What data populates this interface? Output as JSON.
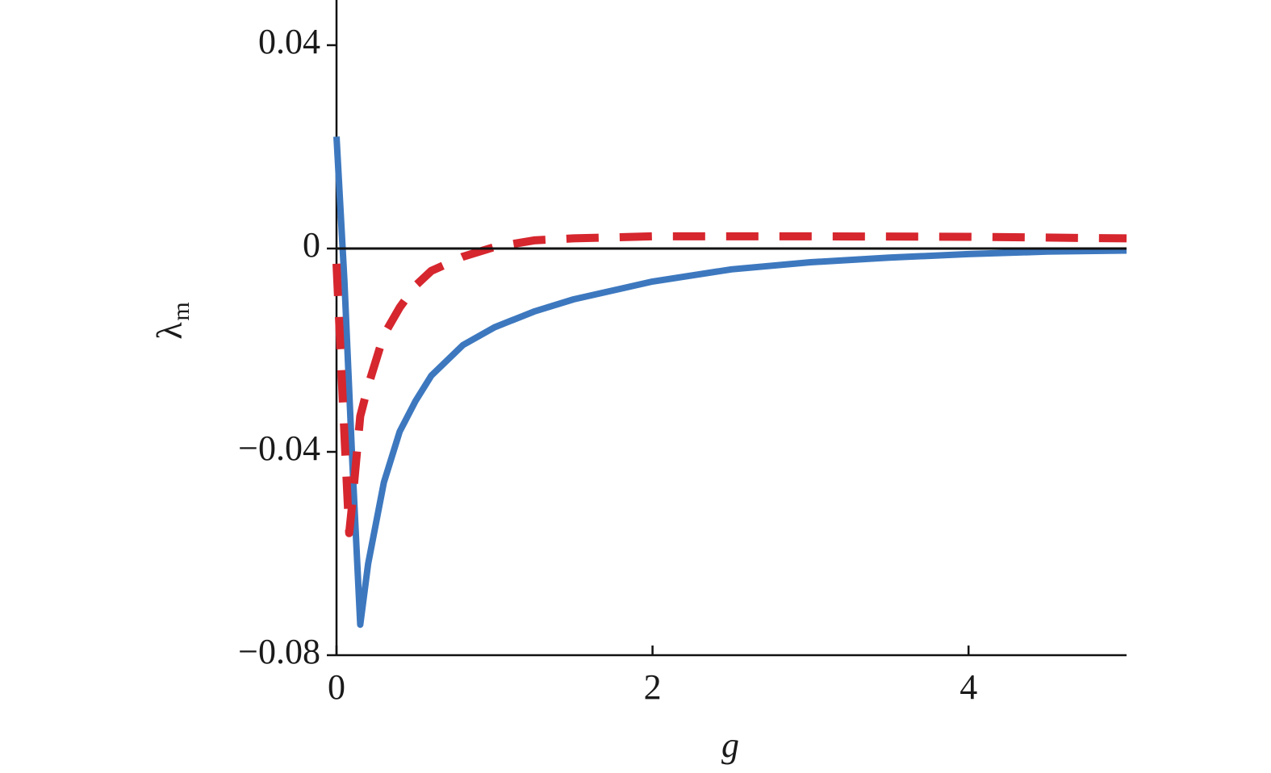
{
  "chart_data": {
    "type": "line",
    "x_label": "g",
    "y_label": "λ",
    "y_label_subscript": "m",
    "xlim": [
      0,
      5
    ],
    "ylim": [
      -0.08,
      0.05
    ],
    "xticks": [
      0,
      2,
      4
    ],
    "yticks": [
      {
        "value": 0.04,
        "label": "0.04"
      },
      0,
      {
        "value": -0.04,
        "label": "−0.04"
      },
      {
        "value": -0.08,
        "label": "−0.08"
      }
    ],
    "zero_line": true,
    "series": [
      {
        "color": "#3d78bf",
        "dashed": false,
        "x": [
          0,
          0.05,
          0.1,
          0.15,
          0.2,
          0.3,
          0.4,
          0.5,
          0.6,
          0.8,
          1.0,
          1.25,
          1.5,
          2,
          2.5,
          3,
          3.5,
          4,
          4.5,
          5
        ],
        "values": [
          0.022,
          -0.0064,
          -0.042,
          -0.074,
          -0.062,
          -0.046,
          -0.036,
          -0.03,
          -0.025,
          -0.019,
          -0.0155,
          -0.0124,
          -0.01,
          -0.0065,
          -0.0041,
          -0.0027,
          -0.0018,
          -0.0011,
          -0.0006,
          -0.0004
        ]
      },
      {
        "color": "#d6262e",
        "dashed": true,
        "x": [
          0,
          0.04,
          0.08,
          0.1,
          0.15,
          0.2,
          0.3,
          0.4,
          0.5,
          0.6,
          0.8,
          1.0,
          1.25,
          1.5,
          2,
          3,
          4,
          5
        ],
        "values": [
          -0.003,
          -0.03,
          -0.056,
          -0.05,
          -0.033,
          -0.027,
          -0.017,
          -0.0116,
          -0.0073,
          -0.0044,
          -0.0016,
          0.0003,
          0.0016,
          0.002,
          0.0024,
          0.0024,
          0.0023,
          0.002
        ]
      }
    ]
  }
}
